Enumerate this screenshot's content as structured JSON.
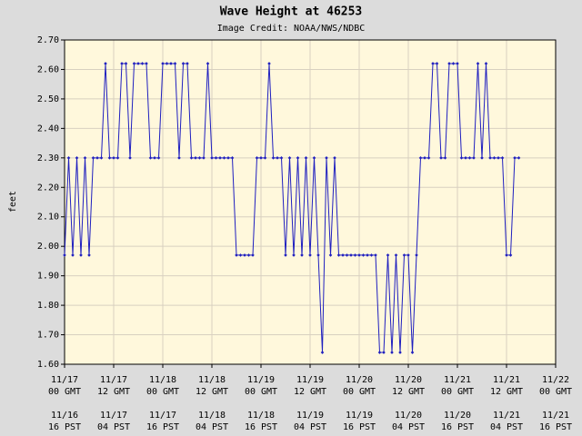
{
  "chart_data": {
    "type": "line",
    "title": "Wave Height at 46253",
    "subtitle": "Image Credit: NOAA/NWS/NDBC",
    "y_label": "feet",
    "x": [
      0,
      1,
      2,
      3,
      4,
      5,
      6,
      7,
      8,
      9,
      10,
      11,
      12,
      13,
      14,
      15,
      16,
      17,
      18,
      19,
      20,
      21,
      22,
      23,
      24,
      25,
      26,
      27,
      28,
      29,
      30,
      31,
      32,
      33,
      34,
      35,
      36,
      37,
      38,
      39,
      40,
      41,
      42,
      43,
      44,
      45,
      46,
      47,
      48,
      49,
      50,
      51,
      52,
      53,
      54,
      55,
      56,
      57,
      58,
      59,
      60,
      61,
      62,
      63,
      64,
      65,
      66,
      67,
      68,
      69,
      70,
      71,
      72,
      73,
      74,
      75,
      76,
      77,
      78,
      79,
      80,
      81,
      82,
      83,
      84,
      85,
      86,
      87,
      88,
      89,
      90,
      91,
      92,
      93,
      94,
      95,
      96,
      97,
      98,
      99,
      100,
      101,
      102,
      103,
      104,
      105,
      106,
      107,
      108,
      109,
      110,
      111
    ],
    "series": [
      {
        "name": "Wave Height",
        "color": "#1f1fbf",
        "values": [
          1.97,
          2.3,
          1.97,
          2.3,
          1.97,
          2.3,
          1.97,
          2.3,
          2.3,
          2.3,
          2.62,
          2.3,
          2.3,
          2.3,
          2.62,
          2.62,
          2.3,
          2.62,
          2.62,
          2.62,
          2.62,
          2.3,
          2.3,
          2.3,
          2.62,
          2.62,
          2.62,
          2.62,
          2.3,
          2.62,
          2.62,
          2.3,
          2.3,
          2.3,
          2.3,
          2.62,
          2.3,
          2.3,
          2.3,
          2.3,
          2.3,
          2.3,
          1.97,
          1.97,
          1.97,
          1.97,
          1.97,
          2.3,
          2.3,
          2.3,
          2.62,
          2.3,
          2.3,
          2.3,
          1.97,
          2.3,
          1.97,
          2.3,
          1.97,
          2.3,
          1.97,
          2.3,
          1.97,
          1.64,
          2.3,
          1.97,
          2.3,
          1.97,
          1.97,
          1.97,
          1.97,
          1.97,
          1.97,
          1.97,
          1.97,
          1.97,
          1.97,
          1.64,
          1.64,
          1.97,
          1.64,
          1.97,
          1.64,
          1.97,
          1.97,
          1.64,
          1.97,
          2.3,
          2.3,
          2.3,
          2.62,
          2.62,
          2.3,
          2.3,
          2.62,
          2.62,
          2.62,
          2.3,
          2.3,
          2.3,
          2.3,
          2.62,
          2.3,
          2.62,
          2.3,
          2.3,
          2.3,
          2.3,
          1.97,
          1.97,
          2.3,
          2.3
        ]
      }
    ],
    "xlim": [
      0,
      120
    ],
    "xticks": [
      {
        "value": 0,
        "label": "11/17",
        "gmt_time": "00 GMT",
        "local_date": "11/16",
        "local_time": "16 PST"
      },
      {
        "value": 12,
        "label": "11/17",
        "gmt_time": "12 GMT",
        "local_date": "11/17",
        "local_time": "04 PST"
      },
      {
        "value": 24,
        "label": "11/18",
        "gmt_time": "00 GMT",
        "local_date": "11/17",
        "local_time": "16 PST"
      },
      {
        "value": 36,
        "label": "11/18",
        "gmt_time": "12 GMT",
        "local_date": "11/18",
        "local_time": "04 PST"
      },
      {
        "value": 48,
        "label": "11/19",
        "gmt_time": "00 GMT",
        "local_date": "11/18",
        "local_time": "16 PST"
      },
      {
        "value": 60,
        "label": "11/19",
        "gmt_time": "12 GMT",
        "local_date": "11/19",
        "local_time": "04 PST"
      },
      {
        "value": 72,
        "label": "11/20",
        "gmt_time": "00 GMT",
        "local_date": "11/19",
        "local_time": "16 PST"
      },
      {
        "value": 84,
        "label": "11/20",
        "gmt_time": "12 GMT",
        "local_date": "11/20",
        "local_time": "04 PST"
      },
      {
        "value": 96,
        "label": "11/21",
        "gmt_time": "00 GMT",
        "local_date": "11/20",
        "local_time": "16 PST"
      },
      {
        "value": 108,
        "label": "11/21",
        "gmt_time": "12 GMT",
        "local_date": "11/21",
        "local_time": "04 PST"
      },
      {
        "value": 120,
        "label": "11/22",
        "gmt_time": "00 GMT",
        "local_date": "11/21",
        "local_time": "16 PST"
      }
    ],
    "ylim": [
      1.6,
      2.7
    ],
    "yticks": [
      {
        "value": 1.6,
        "label": "1.60"
      },
      {
        "value": 1.7,
        "label": "1.70"
      },
      {
        "value": 1.8,
        "label": "1.80"
      },
      {
        "value": 1.9,
        "label": "1.90"
      },
      {
        "value": 2.0,
        "label": "2.00"
      },
      {
        "value": 2.1,
        "label": "2.10"
      },
      {
        "value": 2.2,
        "label": "2.20"
      },
      {
        "value": 2.3,
        "label": "2.30"
      },
      {
        "value": 2.4,
        "label": "2.40"
      },
      {
        "value": 2.5,
        "label": "2.50"
      },
      {
        "value": 2.6,
        "label": "2.60"
      },
      {
        "value": 2.7,
        "label": "2.70"
      }
    ],
    "grid": true,
    "plot_background": "#fff8dc"
  }
}
